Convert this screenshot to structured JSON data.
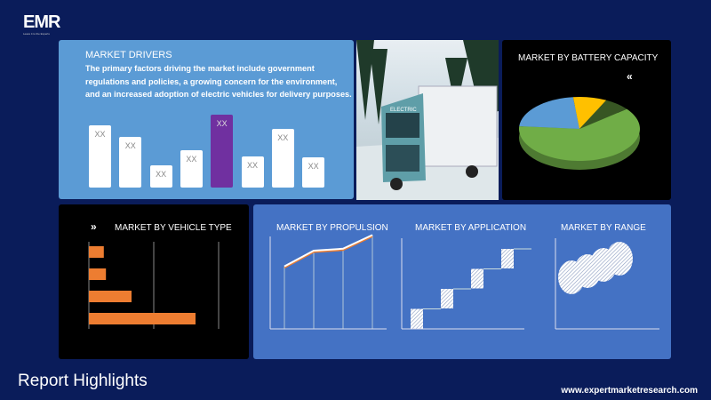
{
  "logo": {
    "text": "EMR",
    "tagline": "Leave it to the Experts"
  },
  "drivers": {
    "title": "MARKET DRIVERS",
    "description": "The primary factors driving the market include government regulations and policies, a growing concern for the environment, and an increased adoption of electric vehicles for delivery purposes.",
    "bars": [
      {
        "label": "XX",
        "value": 70
      },
      {
        "label": "XX",
        "value": 57
      },
      {
        "label": "XX",
        "value": 25
      },
      {
        "label": "XX",
        "value": 42
      },
      {
        "label": "XX",
        "value": 82,
        "highlight": true
      },
      {
        "label": "XX",
        "value": 35
      },
      {
        "label": "XX",
        "value": 66
      },
      {
        "label": "XX",
        "value": 34
      }
    ],
    "bar_color": "#ffffff",
    "highlight_color": "#7030a0"
  },
  "truck_image": {
    "alt": "electric truck on snowy road",
    "cab_text": "ELECTRIC"
  },
  "battery": {
    "title": "MARKET  BY BATTERY CAPACITY",
    "icon": "double-chevron-left-icon",
    "slices": [
      {
        "value": 62,
        "color": "#70ad47"
      },
      {
        "value": 22,
        "color": "#5b9bd5"
      },
      {
        "value": 9,
        "color": "#ffc000"
      },
      {
        "value": 7,
        "color": "#375623"
      }
    ]
  },
  "vehicle_type": {
    "title": "MARKET  BY VEHICLE TYPE",
    "icon": "double-chevron-right-icon",
    "values": [
      7,
      8,
      20,
      50
    ],
    "color": "#ed7d31"
  },
  "propulsion": {
    "title": "MARKET BY PROPULSION",
    "values": [
      52,
      60,
      61,
      68
    ]
  },
  "application": {
    "title": "MARKET BY APPLICATION",
    "values": [
      1,
      2,
      3,
      4
    ]
  },
  "range": {
    "title": "MARKET BY RANGE",
    "values": [
      1,
      2,
      3,
      4
    ]
  },
  "footer": {
    "title": "Report Highlights",
    "url": "www.expertmarketresearch.com"
  }
}
